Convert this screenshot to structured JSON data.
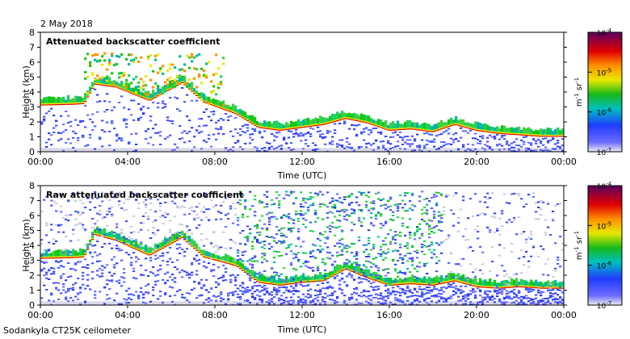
{
  "page": {
    "date": "2 May 2018",
    "footer": "Sodankyla CT25K ceilometer"
  },
  "chart_data": [
    {
      "type": "heatmap",
      "title": "Attenuated backscatter coefficient",
      "xlabel": "Time (UTC)",
      "ylabel": "Height (km)",
      "xticks": [
        "00:00",
        "04:00",
        "08:00",
        "12:00",
        "16:00",
        "20:00",
        "00:00"
      ],
      "xlim": [
        0,
        24
      ],
      "yticks": [
        "0",
        "1",
        "2",
        "3",
        "4",
        "5",
        "6",
        "7",
        "8"
      ],
      "ylim": [
        0,
        8
      ],
      "colorbar": {
        "label": "m-1 sr-1",
        "min_label": "10-7",
        "max_label": "10-4",
        "tick_labels": [
          "10-7",
          "10-6",
          "10-5",
          "10-4"
        ]
      },
      "cloud_base_km": [
        [
          0.0,
          3.1
        ],
        [
          1.5,
          3.15
        ],
        [
          2.0,
          3.2
        ],
        [
          2.5,
          4.5
        ],
        [
          3.5,
          4.3
        ],
        [
          5.0,
          3.4
        ],
        [
          6.5,
          4.6
        ],
        [
          7.5,
          3.3
        ],
        [
          9.0,
          2.5
        ],
        [
          10.0,
          1.6
        ],
        [
          11.0,
          1.4
        ],
        [
          12.0,
          1.6
        ],
        [
          13.0,
          1.8
        ],
        [
          14.0,
          2.2
        ],
        [
          15.0,
          1.9
        ],
        [
          16.0,
          1.4
        ],
        [
          17.0,
          1.5
        ],
        [
          18.0,
          1.3
        ],
        [
          19.0,
          1.8
        ],
        [
          20.0,
          1.4
        ],
        [
          21.0,
          1.2
        ],
        [
          22.0,
          1.1
        ],
        [
          23.0,
          1.0
        ],
        [
          24.0,
          1.0
        ]
      ]
    },
    {
      "type": "heatmap",
      "title": "Raw attenuated backscatter coefficient",
      "xlabel": "Time (UTC)",
      "ylabel": "Height (km)",
      "xticks": [
        "00:00",
        "04:00",
        "08:00",
        "12:00",
        "16:00",
        "20:00",
        "00:00"
      ],
      "xlim": [
        0,
        24
      ],
      "yticks": [
        "0",
        "1",
        "2",
        "3",
        "4",
        "5",
        "6",
        "7",
        "8"
      ],
      "ylim": [
        0,
        8
      ],
      "colorbar": {
        "label": "m-1 sr-1",
        "min_label": "10-7",
        "max_label": "10-4",
        "tick_labels": [
          "10-7",
          "10-6",
          "10-5",
          "10-4"
        ]
      },
      "cloud_base_km": [
        [
          0.0,
          3.1
        ],
        [
          1.5,
          3.15
        ],
        [
          2.0,
          3.2
        ],
        [
          2.5,
          4.7
        ],
        [
          3.5,
          4.3
        ],
        [
          5.0,
          3.3
        ],
        [
          6.5,
          4.5
        ],
        [
          7.5,
          3.2
        ],
        [
          9.0,
          2.6
        ],
        [
          10.0,
          1.5
        ],
        [
          11.0,
          1.3
        ],
        [
          12.0,
          1.5
        ],
        [
          13.0,
          1.6
        ],
        [
          14.0,
          2.4
        ],
        [
          15.0,
          1.8
        ],
        [
          16.0,
          1.3
        ],
        [
          17.0,
          1.4
        ],
        [
          18.0,
          1.3
        ],
        [
          19.0,
          1.6
        ],
        [
          20.0,
          1.2
        ],
        [
          21.0,
          1.1
        ],
        [
          22.0,
          1.2
        ],
        [
          23.0,
          1.1
        ],
        [
          24.0,
          1.1
        ]
      ]
    }
  ]
}
